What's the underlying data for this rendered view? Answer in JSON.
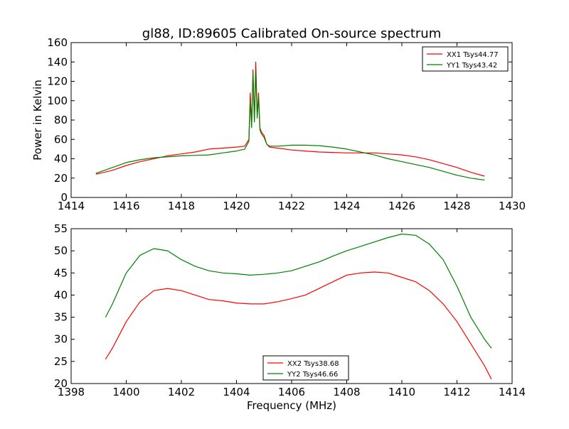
{
  "title": "gl88, ID:89605 Calibrated On-source spectrum",
  "chart_data": [
    {
      "type": "line",
      "title": "gl88, ID:89605 Calibrated On-source spectrum",
      "xlabel": "",
      "ylabel": "Power in Kelvin",
      "xlim": [
        1414,
        1430
      ],
      "ylim": [
        0,
        160
      ],
      "xticks": [
        1414,
        1416,
        1418,
        1420,
        1422,
        1424,
        1426,
        1428,
        1430
      ],
      "yticks": [
        0,
        20,
        40,
        60,
        80,
        100,
        120,
        140,
        160
      ],
      "grid": false,
      "legend_position": "top-right",
      "series": [
        {
          "name": "XX1 Tsys44.77",
          "color": "#ff0000",
          "x": [
            1414.9,
            1415.5,
            1416,
            1416.5,
            1417,
            1417.5,
            1418,
            1418.5,
            1419,
            1419.5,
            1420,
            1420.3,
            1420.45,
            1420.5,
            1420.55,
            1420.6,
            1420.65,
            1420.7,
            1420.75,
            1420.8,
            1420.85,
            1420.9,
            1420.95,
            1421.0,
            1421.1,
            1421.2,
            1421.5,
            1422,
            1422.5,
            1423,
            1423.5,
            1424,
            1424.5,
            1425,
            1425.5,
            1426,
            1426.5,
            1427,
            1427.5,
            1428,
            1428.5,
            1429
          ],
          "y": [
            24,
            28,
            33,
            37,
            40,
            43,
            45,
            47,
            50,
            51,
            52,
            53,
            60,
            108,
            75,
            132,
            80,
            140,
            85,
            108,
            72,
            68,
            66,
            64,
            55,
            52,
            51,
            49,
            48,
            47,
            46.5,
            46,
            46,
            46,
            45,
            44,
            42,
            39,
            35,
            31,
            26,
            22
          ]
        },
        {
          "name": "YY1 Tsys43.42",
          "color": "#008000",
          "x": [
            1414.9,
            1415.5,
            1416,
            1416.5,
            1417,
            1417.5,
            1418,
            1418.5,
            1419,
            1419.5,
            1420,
            1420.3,
            1420.45,
            1420.5,
            1420.55,
            1420.6,
            1420.65,
            1420.7,
            1420.75,
            1420.8,
            1420.85,
            1420.9,
            1420.95,
            1421.0,
            1421.1,
            1421.2,
            1421.5,
            1422,
            1422.5,
            1423,
            1423.5,
            1424,
            1424.5,
            1425,
            1425.5,
            1426,
            1426.5,
            1427,
            1427.5,
            1428,
            1428.5,
            1429
          ],
          "y": [
            25,
            31,
            36,
            39,
            41,
            42,
            43,
            43.5,
            44,
            46,
            48,
            50,
            58,
            100,
            72,
            128,
            78,
            132,
            82,
            104,
            70,
            66,
            64,
            62,
            55,
            53,
            53,
            54,
            54,
            53.5,
            52,
            50,
            47,
            44,
            40,
            37,
            34,
            31,
            27,
            23,
            20,
            18
          ]
        }
      ]
    },
    {
      "type": "line",
      "title": "",
      "xlabel": "Frequency (MHz)",
      "ylabel": "",
      "xlim": [
        1398,
        1414
      ],
      "ylim": [
        20,
        55
      ],
      "xticks": [
        1398,
        1400,
        1402,
        1404,
        1406,
        1408,
        1410,
        1412,
        1414
      ],
      "yticks": [
        20,
        25,
        30,
        35,
        40,
        45,
        50,
        55
      ],
      "grid": false,
      "legend_position": "bottom-center",
      "series": [
        {
          "name": "XX2 Tsys38.68",
          "color": "#ff0000",
          "x": [
            1399.25,
            1399.5,
            1400,
            1400.5,
            1401,
            1401.5,
            1402,
            1402.5,
            1403,
            1403.5,
            1404,
            1404.5,
            1405,
            1405.5,
            1406,
            1406.5,
            1407,
            1407.5,
            1408,
            1408.5,
            1409,
            1409.5,
            1410,
            1410.5,
            1411,
            1411.5,
            1412,
            1412.5,
            1413,
            1413.25
          ],
          "y": [
            25.5,
            28,
            34,
            38.5,
            41,
            41.5,
            41,
            40,
            39,
            38.7,
            38.2,
            38,
            38,
            38.5,
            39.2,
            40,
            41.5,
            43,
            44.5,
            45,
            45.2,
            45,
            44,
            43,
            41,
            38,
            34,
            29,
            24,
            21
          ]
        },
        {
          "name": "YY2 Tsys46.66",
          "color": "#008000",
          "x": [
            1399.25,
            1399.5,
            1400,
            1400.5,
            1401,
            1401.5,
            1402,
            1402.5,
            1403,
            1403.5,
            1404,
            1404.5,
            1405,
            1405.5,
            1406,
            1406.5,
            1407,
            1407.5,
            1408,
            1408.5,
            1409,
            1409.5,
            1410,
            1410.5,
            1411,
            1411.5,
            1412,
            1412.5,
            1413,
            1413.25
          ],
          "y": [
            35,
            38,
            45,
            49,
            50.5,
            50,
            48,
            46.5,
            45.5,
            45,
            44.8,
            44.5,
            44.7,
            45,
            45.5,
            46.5,
            47.5,
            48.8,
            50,
            51,
            52,
            53,
            53.8,
            53.5,
            51.5,
            48,
            42,
            35,
            30,
            28
          ]
        }
      ]
    }
  ]
}
